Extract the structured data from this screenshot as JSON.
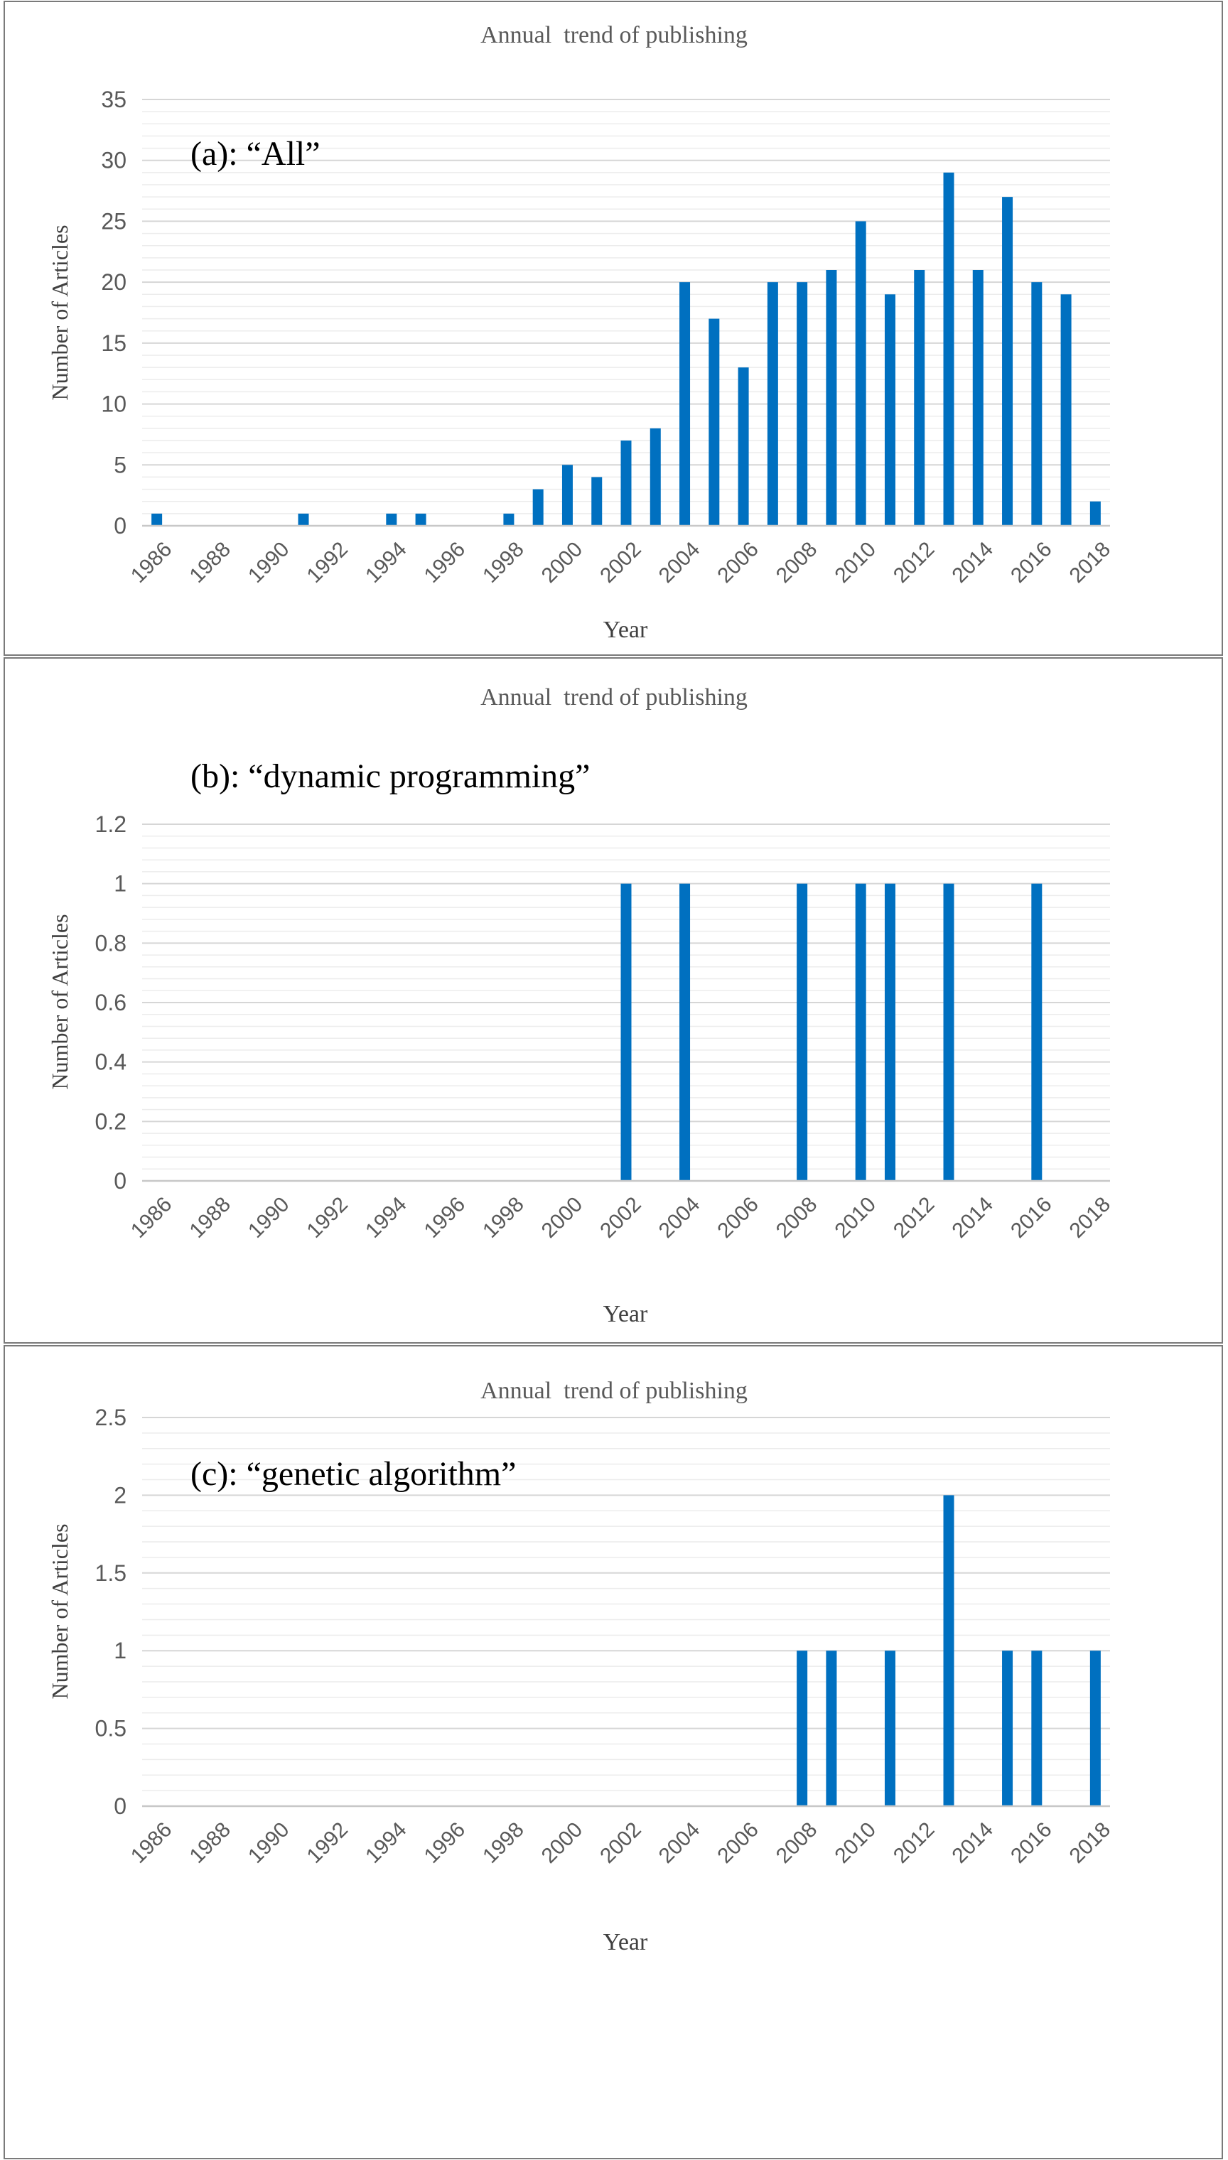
{
  "chart_data": [
    {
      "type": "bar",
      "title": "Annual  trend of publishing",
      "annotation": "(a): “All”",
      "xlabel": "Year",
      "ylabel": "Number of Articles",
      "ylim": [
        0,
        35
      ],
      "yticks": [
        "0",
        "5",
        "10",
        "15",
        "20",
        "25",
        "30",
        "35"
      ],
      "grid": true,
      "x_tick_labels": [
        "1986",
        "1988",
        "1990",
        "1992",
        "1994",
        "1996",
        "1998",
        "2000",
        "2002",
        "2004",
        "2006",
        "2008",
        "2010",
        "2012",
        "2014",
        "2016",
        "2018"
      ],
      "categories": [
        1986,
        1987,
        1988,
        1989,
        1990,
        1991,
        1992,
        1993,
        1994,
        1995,
        1996,
        1997,
        1998,
        1999,
        2000,
        2001,
        2002,
        2003,
        2004,
        2005,
        2006,
        2007,
        2008,
        2009,
        2010,
        2011,
        2012,
        2013,
        2014,
        2015,
        2016,
        2017,
        2018
      ],
      "values": [
        1,
        0,
        0,
        0,
        0,
        1,
        0,
        0,
        1,
        1,
        0,
        0,
        1,
        3,
        5,
        4,
        7,
        8,
        20,
        17,
        13,
        20,
        20,
        21,
        25,
        19,
        21,
        29,
        21,
        27,
        20,
        19,
        2
      ]
    },
    {
      "type": "bar",
      "title": "Annual  trend of publishing",
      "annotation": "(b): “dynamic programming”",
      "xlabel": "Year",
      "ylabel": "Number of Articles",
      "ylim": [
        0,
        1.2
      ],
      "yticks": [
        "0",
        "0.2",
        "0.4",
        "0.6",
        "0.8",
        "1",
        "1.2"
      ],
      "grid": true,
      "x_tick_labels": [
        "1986",
        "1988",
        "1990",
        "1992",
        "1994",
        "1996",
        "1998",
        "2000",
        "2002",
        "2004",
        "2006",
        "2008",
        "2010",
        "2012",
        "2014",
        "2016",
        "2018"
      ],
      "categories": [
        1986,
        1987,
        1988,
        1989,
        1990,
        1991,
        1992,
        1993,
        1994,
        1995,
        1996,
        1997,
        1998,
        1999,
        2000,
        2001,
        2002,
        2003,
        2004,
        2005,
        2006,
        2007,
        2008,
        2009,
        2010,
        2011,
        2012,
        2013,
        2014,
        2015,
        2016,
        2017,
        2018
      ],
      "values": [
        0,
        0,
        0,
        0,
        0,
        0,
        0,
        0,
        0,
        0,
        0,
        0,
        0,
        0,
        0,
        0,
        1,
        0,
        1,
        0,
        0,
        0,
        1,
        0,
        1,
        1,
        0,
        1,
        0,
        0,
        1,
        0,
        0
      ]
    },
    {
      "type": "bar",
      "title": "Annual  trend of publishing",
      "annotation": "(c): “genetic algorithm”",
      "xlabel": "Year",
      "ylabel": "Number of Articles",
      "ylim": [
        0,
        2.5
      ],
      "yticks": [
        "0",
        "0.5",
        "1",
        "1.5",
        "2",
        "2.5"
      ],
      "grid": true,
      "x_tick_labels": [
        "1986",
        "1988",
        "1990",
        "1992",
        "1994",
        "1996",
        "1998",
        "2000",
        "2002",
        "2004",
        "2006",
        "2008",
        "2010",
        "2012",
        "2014",
        "2016",
        "2018"
      ],
      "categories": [
        1986,
        1987,
        1988,
        1989,
        1990,
        1991,
        1992,
        1993,
        1994,
        1995,
        1996,
        1997,
        1998,
        1999,
        2000,
        2001,
        2002,
        2003,
        2004,
        2005,
        2006,
        2007,
        2008,
        2009,
        2010,
        2011,
        2012,
        2013,
        2014,
        2015,
        2016,
        2017,
        2018
      ],
      "values": [
        0,
        0,
        0,
        0,
        0,
        0,
        0,
        0,
        0,
        0,
        0,
        0,
        0,
        0,
        0,
        0,
        0,
        0,
        0,
        0,
        0,
        0,
        1,
        1,
        0,
        1,
        0,
        2,
        0,
        1,
        1,
        0,
        1
      ]
    }
  ],
  "colors": {
    "bar": "#0070c0",
    "border": "#7a7a7a"
  }
}
